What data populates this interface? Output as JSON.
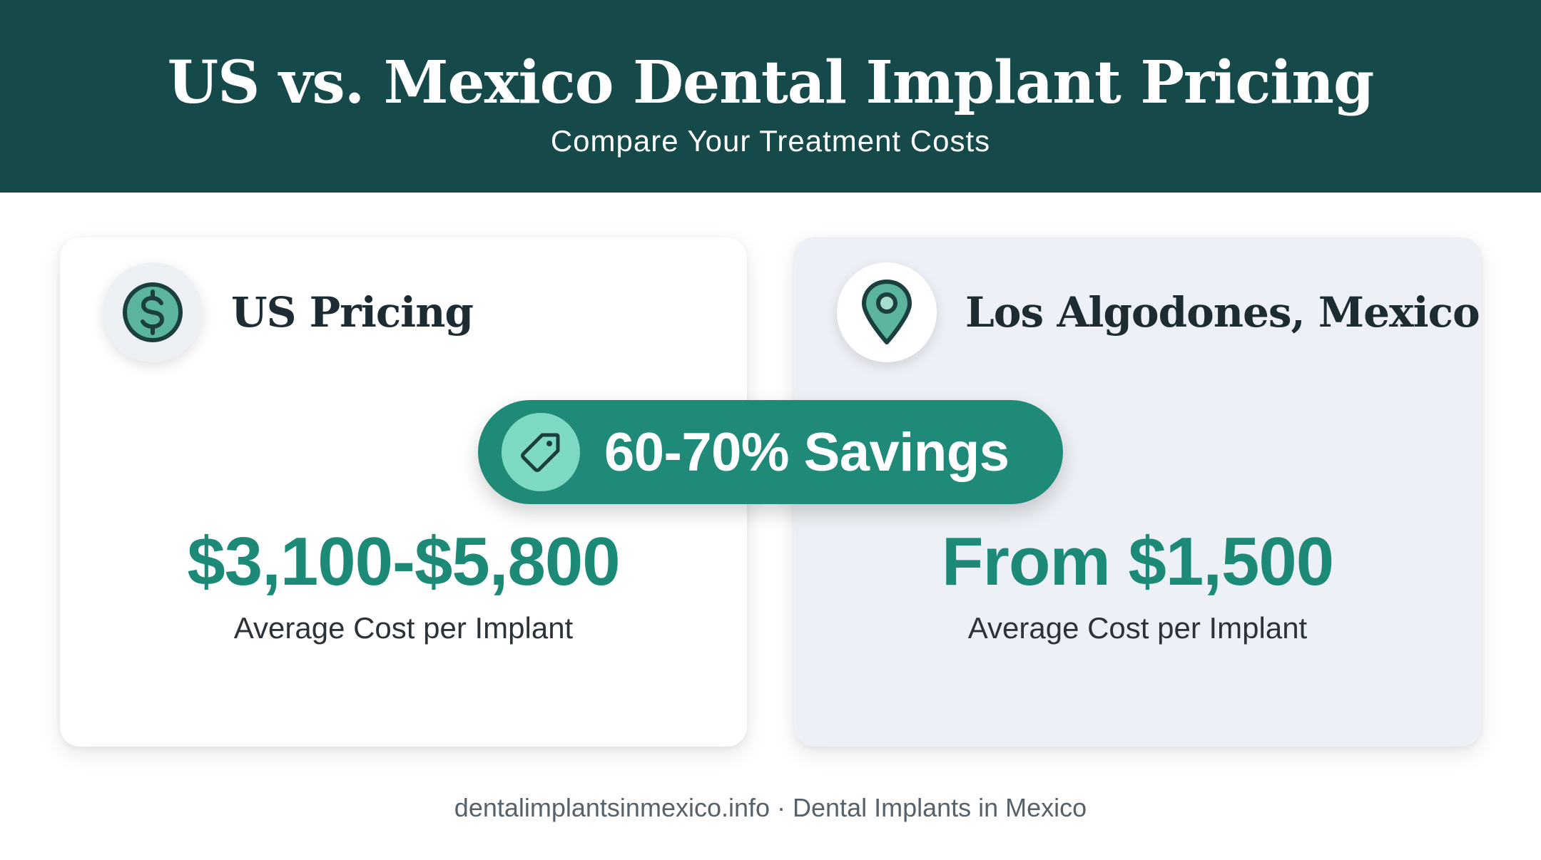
{
  "header": {
    "title": "US vs. Mexico Dental Implant Pricing",
    "subtitle": "Compare Your Treatment Costs"
  },
  "cards": [
    {
      "title": "US Pricing",
      "icon": "dollar-icon",
      "price": "$3,100-$5,800",
      "price_label": "Average Cost per Implant"
    },
    {
      "title": "Los Algodones, Mexico",
      "icon": "location-pin-icon",
      "price": "From $1,500",
      "price_label": "Average Cost per Implant"
    }
  ],
  "savings_badge": {
    "icon": "price-tag-icon",
    "label": "60-70% Savings"
  },
  "footer": {
    "text": "dentalimplantsinmexico.info · Dental Implants in Mexico"
  },
  "colors": {
    "header_bg": "#164a4a",
    "accent": "#1d8a77",
    "badge_bg": "#1f8a78",
    "badge_icon_bg": "#7ed9c4",
    "mexico_card_bg": "#edf0f6"
  }
}
